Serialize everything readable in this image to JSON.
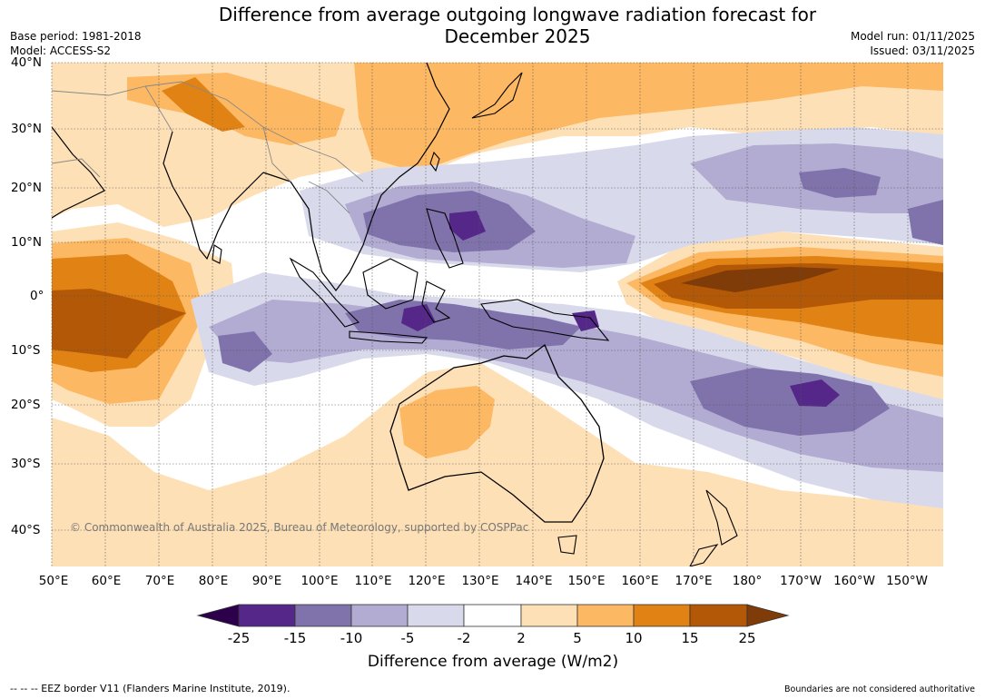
{
  "header": {
    "title_line1": "Difference from average outgoing longwave radiation forecast for",
    "title_line2": "December 2025",
    "base_period": "Base period: 1981-2018",
    "model": "Model: ACCESS-S2",
    "model_run": "Model run: 01/11/2025",
    "issued": "Issued: 03/11/2025"
  },
  "map": {
    "lat_labels": [
      "40°N",
      "30°N",
      "20°N",
      "10°N",
      "0°",
      "10°S",
      "20°S",
      "30°S",
      "40°S"
    ],
    "lon_labels": [
      "50°E",
      "60°E",
      "70°E",
      "80°E",
      "90°E",
      "100°E",
      "110°E",
      "120°E",
      "130°E",
      "140°E",
      "150°E",
      "160°E",
      "170°E",
      "180°",
      "170°W",
      "160°W",
      "150°W"
    ],
    "copyright": "© Commonwealth of Australia 2025, Bureau of Meteorology, supported by COSPPac"
  },
  "colorbar": {
    "title": "Difference from average (W/m2)",
    "labels": [
      "-25",
      "-15",
      "-10",
      "-5",
      "-2",
      "2",
      "5",
      "10",
      "15",
      "25"
    ],
    "colors": [
      "#2d004b",
      "#542788",
      "#8073ac",
      "#b2abd2",
      "#d8daeb",
      "#ffffff",
      "#fee0b6",
      "#fdb863",
      "#e08214",
      "#b35806",
      "#7f3b08"
    ]
  },
  "footer": {
    "eez_legend": "--  --  -- EEZ border V11 (Flanders Marine Institute, 2019).",
    "disclaimer": "Boundaries are not considered authoritative"
  }
}
